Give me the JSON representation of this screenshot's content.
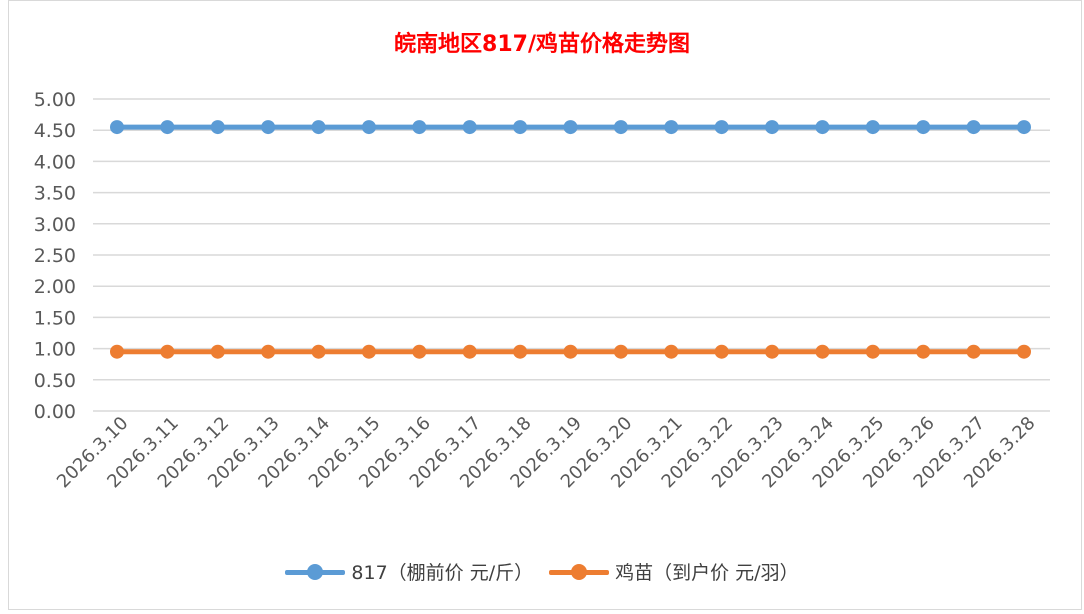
{
  "chart_data": {
    "type": "line",
    "title": "皖南地区817/鸡苗价格走势图",
    "xlabel": "",
    "ylabel": "",
    "ylim": [
      0,
      5
    ],
    "yticks": [
      "0.00",
      "0.50",
      "1.00",
      "1.50",
      "2.00",
      "2.50",
      "3.00",
      "3.50",
      "4.00",
      "4.50",
      "5.00"
    ],
    "categories": [
      "2026.3.10",
      "2026.3.11",
      "2026.3.12",
      "2026.3.13",
      "2026.3.14",
      "2026.3.15",
      "2026.3.16",
      "2026.3.17",
      "2026.3.18",
      "2026.3.19",
      "2026.3.20",
      "2026.3.21",
      "2026.3.22",
      "2026.3.23",
      "2026.3.24",
      "2026.3.25",
      "2026.3.26",
      "2026.3.27",
      "2026.3.28"
    ],
    "series": [
      {
        "name": "817（棚前价 元/斤）",
        "color": "#5b9bd5",
        "values": [
          4.55,
          4.55,
          4.55,
          4.55,
          4.55,
          4.55,
          4.55,
          4.55,
          4.55,
          4.55,
          4.55,
          4.55,
          4.55,
          4.55,
          4.55,
          4.55,
          4.55,
          4.55,
          4.55
        ]
      },
      {
        "name": "鸡苗（到户价 元/羽）",
        "color": "#ed7d31",
        "values": [
          0.95,
          0.95,
          0.95,
          0.95,
          0.95,
          0.95,
          0.95,
          0.95,
          0.95,
          0.95,
          0.95,
          0.95,
          0.95,
          0.95,
          0.95,
          0.95,
          0.95,
          0.95,
          0.95
        ]
      }
    ],
    "grid": true,
    "legend": "bottom"
  }
}
